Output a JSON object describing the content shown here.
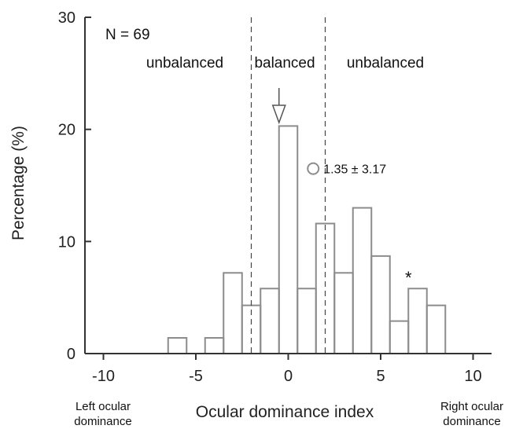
{
  "chart_data": {
    "type": "bar",
    "xlabel": "Ocular dominance index",
    "ylabel": "Percentage (%)",
    "xlim": [
      -11,
      11
    ],
    "ylim": [
      0,
      30
    ],
    "xticks": [
      -10,
      -5,
      0,
      5,
      10
    ],
    "yticks": [
      0,
      10,
      20,
      30
    ],
    "bin_width": 1,
    "bins": [
      {
        "x": -6,
        "value": 1.4
      },
      {
        "x": -5,
        "value": 0
      },
      {
        "x": -4,
        "value": 1.4
      },
      {
        "x": -3,
        "value": 7.2
      },
      {
        "x": -2,
        "value": 4.3
      },
      {
        "x": -1,
        "value": 5.8
      },
      {
        "x": 0,
        "value": 20.3
      },
      {
        "x": 1,
        "value": 5.8
      },
      {
        "x": 2,
        "value": 11.6
      },
      {
        "x": 3,
        "value": 7.2
      },
      {
        "x": 4,
        "value": 13.0
      },
      {
        "x": 5,
        "value": 8.7
      },
      {
        "x": 6,
        "value": 2.9
      },
      {
        "x": 7,
        "value": 5.8
      },
      {
        "x": 8,
        "value": 4.3
      }
    ],
    "balanced_bounds": [
      -2,
      2
    ],
    "n_label": "N = 69",
    "region_labels": {
      "left": "unbalanced",
      "center": "balanced",
      "right": "unbalanced"
    },
    "arrow_x": -0.5,
    "mean_marker": {
      "x": 1.35,
      "y": 16.5,
      "label": "1.35 ± 3.17"
    },
    "asterisk": {
      "x": 6.5,
      "y": 6.8,
      "text": "*"
    },
    "left_end_label": [
      "Left ocular",
      "dominance"
    ],
    "right_end_label": [
      "Right ocular",
      "dominance"
    ],
    "colors": {
      "bar": "#8c8c8c",
      "axis": "#333333",
      "marker": "#8c8c8c"
    }
  }
}
